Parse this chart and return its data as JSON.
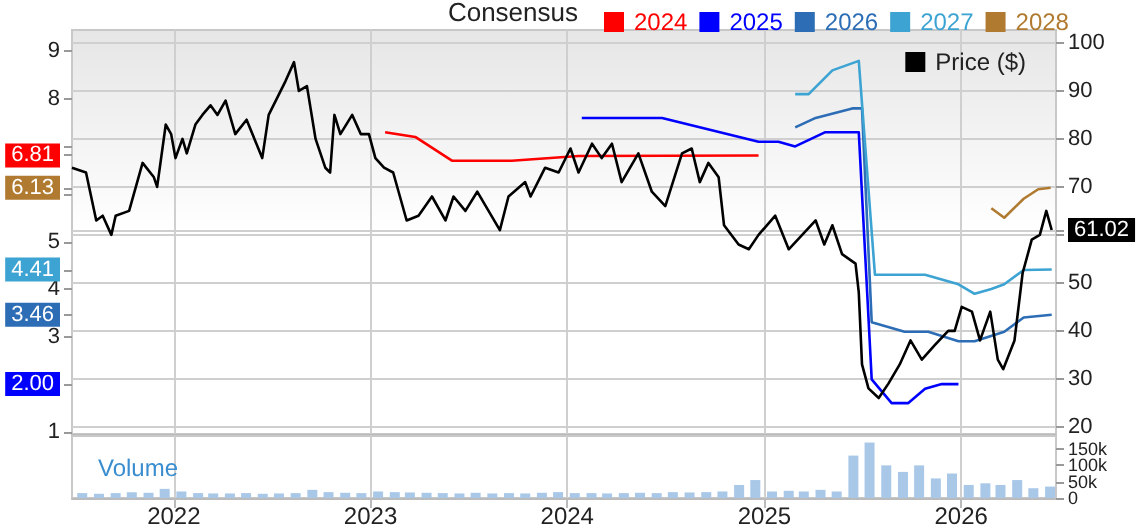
{
  "chart_data": [
    {
      "type": "line",
      "legend_title": "Consensus",
      "legend": "top",
      "grid": true,
      "marker": "none",
      "tick_labels": "y",
      "xlim": [
        "2021-06-26",
        "2026-06-26"
      ],
      "xticks": [
        {
          "value": "2022-01-01",
          "label": null
        },
        {
          "value": "2023-01-01",
          "label": null
        },
        {
          "value": "2024-01-01",
          "label": null
        },
        {
          "value": "2025-01-01",
          "label": null
        },
        {
          "value": "2026-01-01",
          "label": null
        }
      ],
      "ylim": [
        0.95,
        9.45
      ],
      "yticks": [
        1,
        {
          "value": 2.0,
          "label": "2.00"
        },
        3,
        {
          "value": 3.46,
          "label": "3.46"
        },
        4,
        {
          "value": 4.41,
          "label": "4.41"
        },
        5,
        {
          "value": 6,
          "label": null
        },
        {
          "value": 6.13,
          "label": "6.13"
        },
        {
          "value": 6.81,
          "label": "6.81"
        },
        {
          "value": 7,
          "label": null
        },
        8,
        9
      ],
      "y2lim": [
        18.5,
        102.7
      ],
      "y2ticks": [
        20,
        30,
        40,
        50,
        {
          "value": 60,
          "label": null
        },
        {
          "value": 61.02,
          "label": "61.02"
        },
        70,
        80,
        90,
        100
      ],
      "series": [
        {
          "name": "Price ($)",
          "color": "#000000",
          "axis": "y2",
          "x": [
            "2021-06-26",
            "2021-07-22",
            "2021-08-10",
            "2021-08-22",
            "2021-09-07",
            "2021-09-15",
            "2021-10-10",
            "2021-11-04",
            "2021-11-25",
            "2021-12-01",
            "2021-12-17",
            "2021-12-27",
            "2022-01-04",
            "2022-01-17",
            "2022-01-25",
            "2022-02-10",
            "2022-02-23",
            "2022-03-10",
            "2022-03-23",
            "2022-04-07",
            "2022-04-25",
            "2022-05-16",
            "2022-06-14",
            "2022-06-26",
            "2022-07-27",
            "2022-08-12",
            "2022-08-21",
            "2022-09-05",
            "2022-09-21",
            "2022-10-09",
            "2022-10-18",
            "2022-10-26",
            "2022-11-06",
            "2022-11-28",
            "2022-12-14",
            "2022-12-29",
            "2023-01-10",
            "2023-01-26",
            "2023-02-12",
            "2023-03-09",
            "2023-03-31",
            "2023-04-25",
            "2023-05-20",
            "2023-06-04",
            "2023-06-26",
            "2023-07-18",
            "2023-08-08",
            "2023-08-29",
            "2023-09-14",
            "2023-10-15",
            "2023-10-25",
            "2023-11-21",
            "2023-12-16",
            "2024-01-07",
            "2024-01-22",
            "2024-02-16",
            "2024-03-05",
            "2024-03-24",
            "2024-04-11",
            "2024-05-12",
            "2024-06-06",
            "2024-07-01",
            "2024-08-01",
            "2024-08-19",
            "2024-09-03",
            "2024-09-19",
            "2024-10-08",
            "2024-10-18",
            "2024-11-14",
            "2024-12-03",
            "2024-12-21",
            "2025-01-21",
            "2025-02-15",
            "2025-03-12",
            "2025-04-06",
            "2025-04-22",
            "2025-05-07",
            "2025-05-25",
            "2025-06-19",
            "2025-06-25",
            "2025-07-01",
            "2025-07-13",
            "2025-08-01",
            "2025-08-19",
            "2025-09-09",
            "2025-09-29",
            "2025-10-20",
            "2025-11-13",
            "2025-12-08",
            "2025-12-20",
            "2026-01-02",
            "2026-01-21",
            "2026-02-05",
            "2026-02-24",
            "2026-03-10",
            "2026-03-20",
            "2026-04-10",
            "2026-04-25",
            "2026-05-12",
            "2026-05-27",
            "2026-06-08",
            "2026-06-18"
          ],
          "values": [
            74,
            73,
            63,
            64,
            60,
            64,
            65,
            75,
            72,
            70,
            83,
            81,
            76,
            80,
            77,
            83,
            85,
            87,
            85,
            88,
            81,
            84,
            76,
            85,
            92,
            96,
            90,
            91,
            80,
            74,
            73,
            85,
            81,
            85,
            81,
            81,
            76,
            74,
            73,
            63,
            64,
            68,
            63,
            68,
            65,
            69,
            65,
            61,
            68,
            71,
            68,
            74,
            73,
            78,
            73,
            79,
            76,
            79,
            71,
            77,
            69,
            66,
            77,
            78,
            71,
            75,
            72,
            62,
            58,
            57,
            60,
            64,
            57,
            60,
            63,
            58,
            62,
            56,
            54,
            48,
            33,
            28,
            26,
            29,
            33,
            38,
            34,
            37,
            40,
            40,
            45,
            44,
            38,
            44,
            34,
            32,
            38,
            52,
            59,
            60,
            65,
            61.02
          ]
        },
        {
          "name": "2024",
          "color": "#ff0000",
          "axis": "y",
          "x": [
            "2023-01-28",
            "2023-03-25",
            "2023-06-01",
            "2023-09-20",
            "2024-01-22",
            "2024-12-21"
          ],
          "values": [
            7.3,
            7.2,
            6.7,
            6.7,
            6.8,
            6.81
          ]
        },
        {
          "name": "2025",
          "color": "#0000ff",
          "axis": "y",
          "x": [
            "2024-01-28",
            "2024-06-25",
            "2024-12-21",
            "2025-01-27",
            "2025-02-27",
            "2025-04-24",
            "2025-06-25",
            "2025-07-19",
            "2025-08-25",
            "2025-09-25",
            "2025-10-26",
            "2025-11-26",
            "2025-12-27"
          ],
          "values": [
            7.6,
            7.6,
            7.1,
            7.1,
            7.0,
            7.3,
            7.3,
            2.1,
            1.6,
            1.6,
            1.9,
            2.0,
            2.0
          ]
        },
        {
          "name": "2026",
          "color": "#2c6db5",
          "axis": "y",
          "x": [
            "2025-02-27",
            "2025-04-06",
            "2025-06-13",
            "2025-07-01",
            "2025-07-19",
            "2025-09-18",
            "2025-11-01",
            "2025-12-27",
            "2026-01-26",
            "2026-03-22",
            "2026-04-27",
            "2026-06-18"
          ],
          "values": [
            7.4,
            7.6,
            7.8,
            7.8,
            3.3,
            3.1,
            3.1,
            2.9,
            2.9,
            3.1,
            3.4,
            3.46
          ]
        },
        {
          "name": "2027",
          "color": "#3ca3d2",
          "axis": "y",
          "x": [
            "2025-02-27",
            "2025-03-24",
            "2025-05-07",
            "2025-06-25",
            "2025-07-25",
            "2025-10-26",
            "2025-12-27",
            "2026-01-26",
            "2026-02-26",
            "2026-03-22",
            "2026-04-27",
            "2026-06-18"
          ],
          "values": [
            8.1,
            8.1,
            8.6,
            8.8,
            4.3,
            4.3,
            4.1,
            3.9,
            4.0,
            4.1,
            4.4,
            4.41
          ]
        },
        {
          "name": "2028",
          "color": "#b07a30",
          "axis": "y",
          "x": [
            "2026-02-26",
            "2026-03-22",
            "2026-04-27",
            "2026-05-24",
            "2026-06-16"
          ],
          "values": [
            5.7,
            5.5,
            5.9,
            6.1,
            6.13
          ]
        }
      ]
    },
    {
      "type": "bar",
      "title": "Volume",
      "grid": "x",
      "xlim": [
        "2021-06-26",
        "2026-06-26"
      ],
      "xticks": [
        {
          "value": "2022-01-01",
          "label": "2022"
        },
        {
          "value": "2023-01-01",
          "label": "2023"
        },
        {
          "value": "2024-01-01",
          "label": "2024"
        },
        {
          "value": "2025-01-01",
          "label": "2025"
        },
        {
          "value": "2026-01-01",
          "label": "2026"
        }
      ],
      "y2lim": [
        0,
        190000
      ],
      "y2ticks": [
        0,
        {
          "value": 50000,
          "label": "50k"
        },
        {
          "value": 100000,
          "label": "100k"
        },
        {
          "value": 150000,
          "label": "150k"
        }
      ],
      "series": [
        {
          "axis": "y2",
          "color": "#a9c8e8",
          "x": [
            "2021-07-15",
            "2021-08-15",
            "2021-09-15",
            "2021-10-15",
            "2021-11-15",
            "2021-12-15",
            "2022-01-15",
            "2022-02-15",
            "2022-03-15",
            "2022-04-15",
            "2022-05-15",
            "2022-06-15",
            "2022-07-15",
            "2022-08-15",
            "2022-09-15",
            "2022-10-15",
            "2022-11-15",
            "2022-12-15",
            "2023-01-15",
            "2023-02-15",
            "2023-03-15",
            "2023-04-15",
            "2023-05-15",
            "2023-06-15",
            "2023-07-15",
            "2023-08-15",
            "2023-09-15",
            "2023-10-15",
            "2023-11-15",
            "2023-12-15",
            "2024-01-15",
            "2024-02-15",
            "2024-03-15",
            "2024-04-15",
            "2024-05-15",
            "2024-06-15",
            "2024-07-15",
            "2024-08-15",
            "2024-09-15",
            "2024-10-15",
            "2024-11-15",
            "2024-12-15",
            "2025-01-15",
            "2025-02-15",
            "2025-03-15",
            "2025-04-15",
            "2025-05-15",
            "2025-06-15",
            "2025-07-15",
            "2025-08-15",
            "2025-09-15",
            "2025-10-15",
            "2025-11-15",
            "2025-12-15",
            "2026-01-15",
            "2026-02-15",
            "2026-03-15",
            "2026-04-15",
            "2026-05-15",
            "2026-06-15"
          ],
          "values": [
            15000,
            13000,
            15000,
            18000,
            16000,
            28000,
            20000,
            15000,
            14000,
            14000,
            15000,
            13000,
            14000,
            15000,
            25000,
            18000,
            16000,
            15000,
            20000,
            18000,
            17000,
            16000,
            15000,
            14000,
            16000,
            14000,
            15000,
            14000,
            16000,
            18000,
            15000,
            15000,
            14000,
            15000,
            16000,
            15000,
            18000,
            17000,
            18000,
            20000,
            40000,
            55000,
            20000,
            22000,
            20000,
            25000,
            20000,
            130000,
            170000,
            100000,
            80000,
            100000,
            60000,
            75000,
            40000,
            45000,
            40000,
            55000,
            30000,
            35000
          ]
        }
      ]
    }
  ]
}
